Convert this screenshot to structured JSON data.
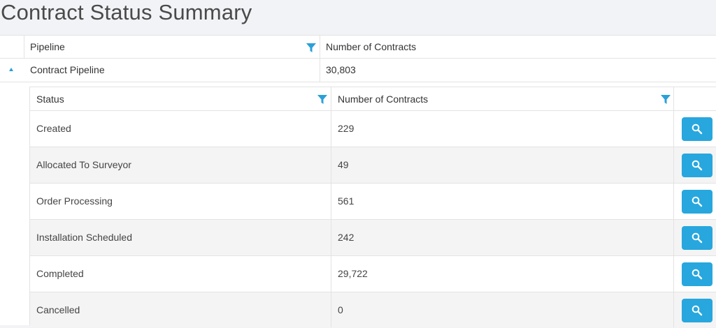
{
  "page": {
    "title": "Contract Status Summary"
  },
  "pipeline_table": {
    "columns": [
      "Pipeline",
      "Number of Contracts"
    ],
    "rows": [
      {
        "pipeline": "Contract Pipeline",
        "count": "30,803"
      }
    ]
  },
  "status_table": {
    "columns": [
      "Status",
      "Number of Contracts"
    ],
    "rows": [
      {
        "status": "Created",
        "count": "229"
      },
      {
        "status": "Allocated To Surveyor",
        "count": "49"
      },
      {
        "status": "Order Processing",
        "count": "561"
      },
      {
        "status": "Installation Scheduled",
        "count": "242"
      },
      {
        "status": "Completed",
        "count": "29,722"
      },
      {
        "status": "Cancelled",
        "count": "0"
      }
    ]
  },
  "icons": {
    "filter": "funnel-icon",
    "search": "search-icon",
    "expand": "triangle-up-icon"
  },
  "colors": {
    "accent": "#27a7de",
    "border": "#e3e3e3",
    "row_alt": "#f4f4f4"
  }
}
